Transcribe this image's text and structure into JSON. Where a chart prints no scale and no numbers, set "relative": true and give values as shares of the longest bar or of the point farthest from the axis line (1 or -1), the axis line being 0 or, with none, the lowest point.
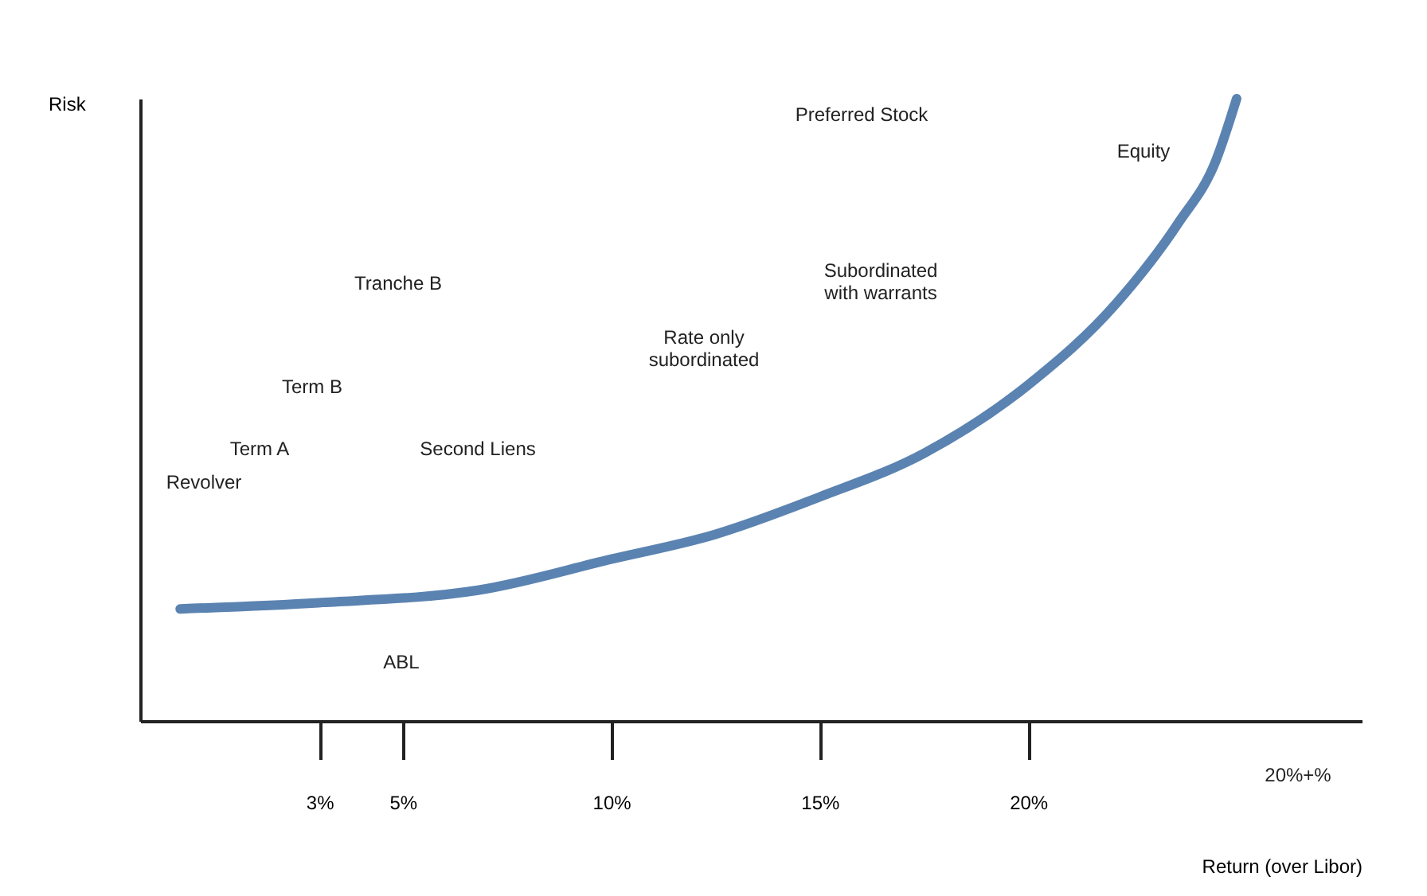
{
  "chart_data": {
    "type": "line",
    "relative": true,
    "xlabel": "Return (over Libor)",
    "ylabel": "Risk",
    "x": [
      -0.34,
      2.98,
      6.8,
      10,
      12.5,
      15,
      17.5,
      20,
      22.1,
      23.6,
      24.5,
      25
    ],
    "series": [
      {
        "color": "#5b83b1",
        "values": [
          0.18,
          0.19,
          0.21,
          0.26,
          0.3,
          0.36,
          0.43,
          0.54,
          0.67,
          0.8,
          0.9,
          1.0
        ]
      }
    ],
    "xlim": [
      -1.3,
      28
    ],
    "xticks": [
      {
        "value": 3,
        "label": "3%"
      },
      {
        "value": 5,
        "label": "5%"
      },
      {
        "value": 10,
        "label": "10%"
      },
      {
        "value": 15,
        "label": "15%"
      },
      {
        "value": 20,
        "label": "20%"
      }
    ],
    "grid": false,
    "marker": "none",
    "line_style": "solid",
    "tick_labels": "x",
    "annotations": [
      "Revolver",
      "Term A",
      "Term B",
      "Tranche B",
      "Second Liens",
      "ABL",
      "Rate only\nsubordinated",
      "Subordinated\nwith warrants",
      "Preferred Stock",
      "Equity",
      "20%+%"
    ]
  }
}
